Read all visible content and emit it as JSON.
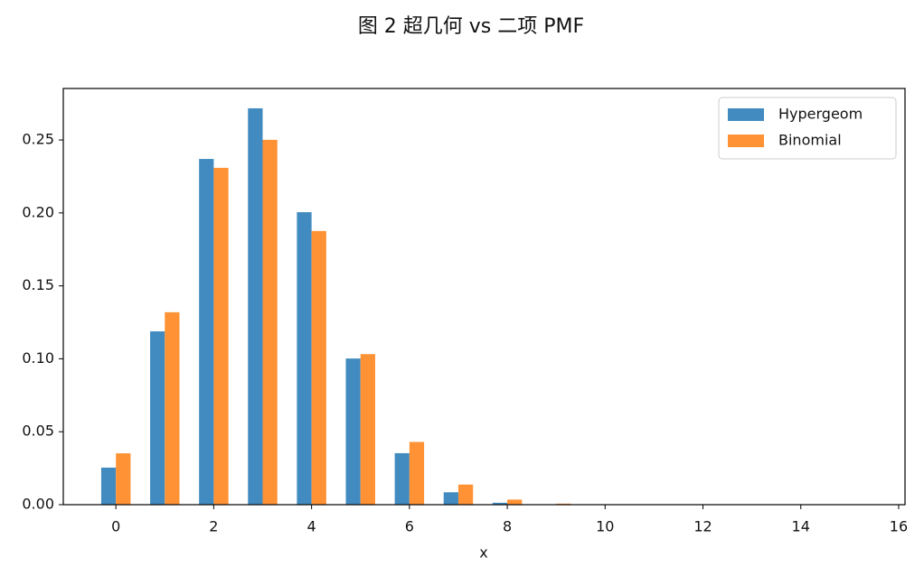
{
  "chart_data": {
    "type": "bar",
    "title": "图 2   超几何 vs 二项 PMF",
    "x_label": "x",
    "x": [
      0,
      1,
      2,
      3,
      4,
      5,
      6,
      7,
      8,
      9,
      10,
      11,
      12,
      13,
      14,
      15
    ],
    "series": [
      {
        "name": "Hypergeom",
        "color": "#428bc0",
        "values": [
          0.0254,
          0.1188,
          0.237,
          0.2717,
          0.2005,
          0.1002,
          0.0353,
          0.0085,
          0.0013,
          0.0001,
          0,
          0,
          0,
          0,
          0,
          0
        ]
      },
      {
        "name": "Binomial",
        "color": "#ff9234",
        "values": [
          0.0352,
          0.1319,
          0.2309,
          0.2501,
          0.1876,
          0.1032,
          0.043,
          0.0138,
          0.0035,
          0.0007,
          0.0001,
          0,
          0,
          0,
          0,
          0
        ]
      }
    ],
    "xlim": [
      -1.075,
      16.13
    ],
    "xticks": [
      0,
      2,
      4,
      6,
      8,
      10,
      12,
      14,
      16
    ],
    "ylim": [
      0,
      0.2853
    ],
    "yticks": [
      {
        "value": 0,
        "label": "0.00"
      },
      {
        "value": 0.05,
        "label": "0.05"
      },
      {
        "value": 0.1,
        "label": "0.10"
      },
      {
        "value": 0.15,
        "label": "0.15"
      },
      {
        "value": 0.2,
        "label": "0.20"
      },
      {
        "value": 0.25,
        "label": "0.25"
      }
    ],
    "legend": "upper right",
    "grid": false
  }
}
